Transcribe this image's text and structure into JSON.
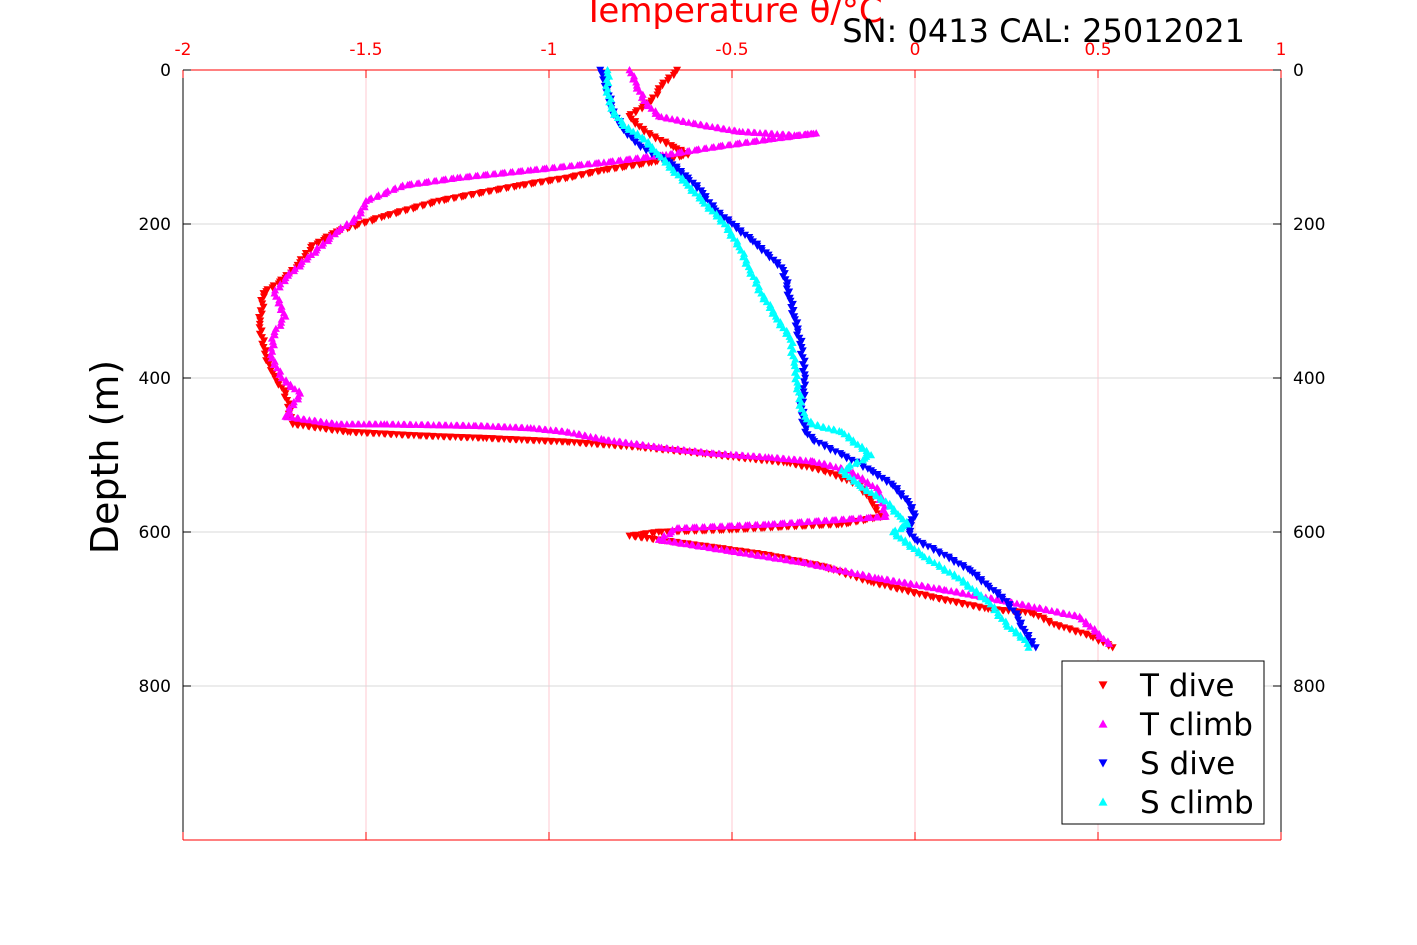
{
  "chart_data": {
    "type": "scatter",
    "title": "Temperature θ/°C",
    "subtitle": "SN: 0413  CAL: 25012021",
    "xlabel": "Temperature θ/°C",
    "ylabel": "Depth (m)",
    "xlim": [
      -2,
      1
    ],
    "ylim": [
      0,
      1000
    ],
    "y_reversed": true,
    "x_axis_position": "top",
    "grid": true,
    "legend_position": "bottom-right",
    "x_ticks": [
      "-2",
      "-1.5",
      "-1",
      "-0.5",
      "0",
      "0.5",
      "1"
    ],
    "y_ticks": [
      "0",
      "200",
      "400",
      "600",
      "800"
    ],
    "series": [
      {
        "name": "T dive",
        "marker": "triangle-down",
        "color": "#ff0000",
        "x": [
          -0.65,
          -0.69,
          -0.72,
          -0.78,
          -0.74,
          -0.66,
          -0.62,
          -0.72,
          -0.85,
          -0.95,
          -1.08,
          -1.3,
          -1.45,
          -1.58,
          -1.65,
          -1.68,
          -1.72,
          -1.78,
          -1.79,
          -1.78,
          -1.76,
          -1.72,
          -1.7,
          -1.55,
          -1.35,
          -1.18,
          -0.95,
          -0.75,
          -0.58,
          -0.45,
          -0.35,
          -0.25,
          -0.15,
          -0.12,
          -0.09,
          -0.2,
          -0.35,
          -0.5,
          -0.7,
          -0.78,
          -0.55,
          -0.4,
          -0.25,
          -0.12,
          0.05,
          0.2,
          0.32,
          0.38,
          0.48,
          0.54
        ],
        "y": [
          0,
          20,
          40,
          60,
          80,
          100,
          110,
          120,
          130,
          140,
          150,
          170,
          190,
          210,
          230,
          250,
          270,
          290,
          330,
          360,
          390,
          420,
          460,
          470,
          475,
          478,
          483,
          490,
          498,
          505,
          510,
          520,
          540,
          560,
          580,
          590,
          593,
          597,
          600,
          605,
          620,
          630,
          645,
          665,
          685,
          700,
          705,
          720,
          735,
          750
        ]
      },
      {
        "name": "T climb",
        "marker": "triangle-up",
        "color": "#ff00ff",
        "x": [
          -0.78,
          -0.76,
          -0.74,
          -0.7,
          -0.6,
          -0.48,
          -0.32,
          -0.27,
          -0.4,
          -0.55,
          -0.68,
          -0.85,
          -1.05,
          -1.25,
          -1.4,
          -1.5,
          -1.52,
          -1.58,
          -1.65,
          -1.72,
          -1.75,
          -1.72,
          -1.75,
          -1.76,
          -1.73,
          -1.68,
          -1.72,
          -1.58,
          -1.45,
          -1.2,
          -1.05,
          -0.95,
          -0.85,
          -0.7,
          -0.55,
          -0.4,
          -0.28,
          -0.18,
          -0.1,
          -0.08,
          -0.4,
          -0.65,
          -0.7,
          -0.5,
          -0.3,
          -0.1,
          0.08,
          0.25,
          0.45,
          0.53
        ],
        "y": [
          0,
          20,
          40,
          60,
          70,
          80,
          85,
          82,
          90,
          100,
          110,
          120,
          130,
          140,
          150,
          170,
          190,
          210,
          240,
          270,
          290,
          320,
          340,
          370,
          400,
          420,
          450,
          460,
          460,
          462,
          465,
          470,
          480,
          490,
          498,
          503,
          508,
          520,
          545,
          580,
          590,
          595,
          610,
          625,
          640,
          660,
          675,
          690,
          710,
          745
        ]
      },
      {
        "name": "S dive",
        "marker": "triangle-down",
        "color": "#0000ff",
        "x": [
          -0.86,
          -0.84,
          -0.83,
          -0.8,
          -0.75,
          -0.67,
          -0.62,
          -0.58,
          -0.55,
          -0.5,
          -0.45,
          -0.4,
          -0.36,
          -0.35,
          -0.34,
          -0.33,
          -0.32,
          -0.31,
          -0.3,
          -0.31,
          -0.3,
          -0.28,
          -0.2,
          -0.12,
          -0.06,
          -0.02,
          0.0,
          -0.02,
          0.0,
          0.08,
          0.15,
          0.2,
          0.25,
          0.28,
          0.3,
          0.33
        ],
        "y": [
          0,
          25,
          50,
          75,
          100,
          120,
          140,
          160,
          180,
          200,
          220,
          240,
          260,
          280,
          300,
          320,
          340,
          360,
          400,
          440,
          470,
          480,
          500,
          520,
          540,
          560,
          580,
          595,
          610,
          630,
          650,
          670,
          690,
          710,
          730,
          750
        ]
      },
      {
        "name": "S climb",
        "marker": "triangle-up",
        "color": "#00ffff",
        "x": [
          -0.84,
          -0.84,
          -0.83,
          -0.8,
          -0.74,
          -0.7,
          -0.66,
          -0.62,
          -0.58,
          -0.52,
          -0.48,
          -0.45,
          -0.42,
          -0.38,
          -0.34,
          -0.33,
          -0.32,
          -0.31,
          -0.3,
          -0.28,
          -0.2,
          -0.12,
          -0.2,
          -0.15,
          -0.08,
          -0.04,
          -0.02,
          -0.06,
          0.02,
          0.12,
          0.2,
          0.25,
          0.3,
          0.31
        ],
        "y": [
          0,
          25,
          50,
          70,
          90,
          110,
          130,
          150,
          170,
          200,
          230,
          260,
          290,
          320,
          350,
          380,
          410,
          440,
          450,
          460,
          470,
          500,
          520,
          540,
          560,
          580,
          590,
          600,
          630,
          660,
          690,
          720,
          740,
          750
        ]
      }
    ]
  }
}
